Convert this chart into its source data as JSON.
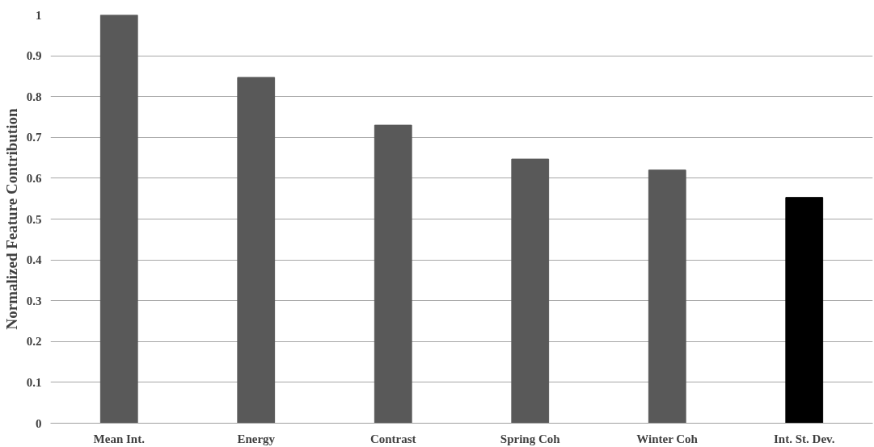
{
  "chart_data": {
    "type": "bar",
    "ylabel": "Normalized Feature Contribution",
    "categories": [
      "Mean Int.",
      "Energy",
      "Contrast",
      "Spring Coh",
      "Winter Coh",
      "Int. St. Dev."
    ],
    "values": [
      1,
      0.847,
      0.73,
      0.647,
      0.62,
      0.553
    ],
    "colors": [
      "#595959",
      "#595959",
      "#595959",
      "#595959",
      "#595959",
      "#000000"
    ],
    "ylim": [
      0,
      1
    ],
    "yticks": [
      0,
      0.1,
      0.2,
      0.3,
      0.4,
      0.5,
      0.6,
      0.7,
      0.8,
      0.9,
      1
    ],
    "grid": "y"
  }
}
